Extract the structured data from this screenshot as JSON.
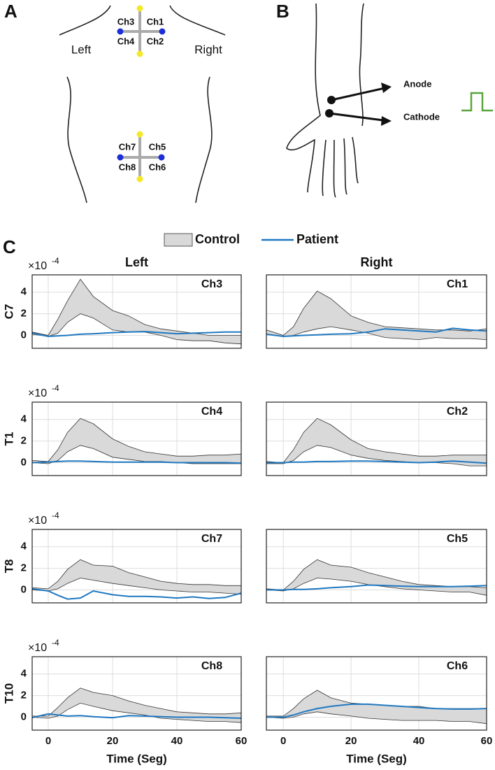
{
  "panel_labels": [
    "A",
    "B",
    "C"
  ],
  "diagram_a": {
    "left": "Left",
    "right": "Right",
    "electrodes": [
      "Ch3",
      "Ch1",
      "Ch4",
      "Ch2",
      "Ch7",
      "Ch5",
      "Ch8",
      "Ch6"
    ]
  },
  "diagram_b": {
    "anode": "Anode",
    "cathode": "Cathode"
  },
  "legend": [
    {
      "name": "Control",
      "color": "#d9d9d9"
    },
    {
      "name": "Patient",
      "color": "#1f78c1"
    }
  ],
  "chart_data": [
    {
      "type": "band-line",
      "title": "Left",
      "ylabel": "C7",
      "label": "Ch3",
      "y_multiplier": "×10",
      "y_exponent": "-4",
      "x": [
        -5,
        0,
        3,
        6,
        10,
        14,
        20,
        25,
        30,
        35,
        40,
        45,
        50,
        55,
        60
      ],
      "series": [
        {
          "upper": [
            0.3,
            0,
            1.5,
            3.2,
            5.2,
            3.6,
            2.3,
            1.8,
            1.0,
            0.6,
            0.4,
            0.2,
            0.0,
            0.0,
            0.0
          ],
          "lower": [
            0.1,
            -0.1,
            0.2,
            1.2,
            2.0,
            1.6,
            0.5,
            0.3,
            0.3,
            0.0,
            -0.4,
            -0.5,
            -0.5,
            -0.7,
            -0.8
          ]
        },
        {
          "values": [
            0.2,
            -0.1,
            -0.05,
            0.0,
            0.1,
            0.15,
            0.25,
            0.3,
            0.35,
            0.25,
            0.15,
            0.2,
            0.25,
            0.3,
            0.3
          ]
        }
      ],
      "xlim": [
        -5,
        60
      ],
      "ylim": [
        -1.2,
        5.6
      ],
      "xticks": [
        0,
        20,
        40,
        60
      ],
      "yticks": [
        0,
        2,
        4
      ],
      "grid": true
    },
    {
      "type": "band-line",
      "title": "Right",
      "label": "Ch1",
      "x": [
        -5,
        0,
        3,
        6,
        10,
        14,
        20,
        25,
        30,
        35,
        40,
        45,
        50,
        55,
        60
      ],
      "series": [
        {
          "upper": [
            0.5,
            0,
            0.8,
            2.5,
            4.1,
            3.4,
            1.8,
            1.2,
            0.8,
            0.7,
            0.6,
            0.5,
            0.5,
            0.4,
            0.6
          ],
          "lower": [
            0.1,
            -0.1,
            0,
            0.3,
            0.6,
            0.8,
            0.5,
            0.2,
            -0.2,
            -0.3,
            -0.4,
            -0.2,
            -0.3,
            -0.3,
            -0.4
          ]
        },
        {
          "values": [
            0.1,
            -0.1,
            -0.05,
            0,
            0.05,
            0.1,
            0.15,
            0.3,
            0.6,
            0.5,
            0.4,
            0.3,
            0.65,
            0.5,
            0.4
          ]
        }
      ],
      "xlim": [
        -5,
        60
      ],
      "ylim": [
        -1.2,
        5.6
      ],
      "xticks": [
        0,
        20,
        40,
        60
      ],
      "yticks": [
        0,
        2,
        4
      ],
      "grid": true
    },
    {
      "type": "band-line",
      "ylabel": "T1",
      "label": "Ch4",
      "y_multiplier": "×10",
      "y_exponent": "-4",
      "x": [
        -5,
        0,
        3,
        6,
        10,
        14,
        20,
        25,
        30,
        35,
        40,
        45,
        50,
        55,
        60
      ],
      "series": [
        {
          "upper": [
            0.2,
            0.1,
            1.2,
            2.8,
            4.1,
            3.6,
            2.2,
            1.5,
            1.0,
            0.8,
            0.6,
            0.6,
            0.7,
            0.7,
            0.8
          ],
          "lower": [
            0,
            -0.1,
            0.2,
            1.0,
            1.6,
            1.3,
            0.5,
            0.3,
            0.1,
            0.1,
            0,
            -0.1,
            -0.1,
            -0.1,
            -0.1
          ]
        },
        {
          "values": [
            0,
            0.05,
            0.1,
            0.15,
            0.15,
            0.1,
            0.05,
            0.05,
            0.05,
            0.05,
            0,
            0,
            0,
            0,
            -0.05
          ]
        }
      ],
      "xlim": [
        -5,
        60
      ],
      "ylim": [
        -1.2,
        5.6
      ],
      "xticks": [
        0,
        20,
        40,
        60
      ],
      "yticks": [
        0,
        2,
        4
      ],
      "grid": true
    },
    {
      "type": "band-line",
      "label": "Ch2",
      "x": [
        -5,
        0,
        3,
        6,
        10,
        14,
        20,
        25,
        30,
        35,
        40,
        45,
        50,
        55,
        60
      ],
      "series": [
        {
          "upper": [
            0.1,
            0,
            1.2,
            2.8,
            4.1,
            3.5,
            2.1,
            1.3,
            1.0,
            0.8,
            0.6,
            0.6,
            0.7,
            0.7,
            0.7
          ],
          "lower": [
            -0.1,
            -0.1,
            0.2,
            1.0,
            1.6,
            1.4,
            0.7,
            0.4,
            0.2,
            0.1,
            0,
            0,
            -0.1,
            -0.3,
            -0.3
          ]
        },
        {
          "values": [
            0,
            0,
            0.05,
            0.05,
            0.1,
            0.1,
            0.15,
            0.15,
            0.1,
            0.05,
            0,
            0.05,
            0.15,
            0.05,
            -0.05
          ]
        }
      ],
      "xlim": [
        -5,
        60
      ],
      "ylim": [
        -1.2,
        5.6
      ],
      "xticks": [
        0,
        20,
        40,
        60
      ],
      "yticks": [
        0,
        2,
        4
      ],
      "grid": true
    },
    {
      "type": "band-line",
      "ylabel": "T8",
      "label": "Ch7",
      "y_multiplier": "×10",
      "y_exponent": "-4",
      "x": [
        -5,
        0,
        3,
        6,
        10,
        14,
        20,
        25,
        30,
        35,
        40,
        45,
        50,
        55,
        60
      ],
      "series": [
        {
          "upper": [
            0.2,
            0.1,
            0.8,
            1.9,
            2.8,
            2.3,
            2.2,
            1.6,
            1.2,
            0.8,
            0.6,
            0.5,
            0.5,
            0.4,
            0.4
          ],
          "lower": [
            0,
            -0.1,
            0.1,
            0.6,
            1.1,
            0.9,
            0.6,
            0.4,
            0.2,
            0,
            -0.1,
            -0.2,
            -0.2,
            -0.3,
            -0.4
          ]
        },
        {
          "values": [
            0.1,
            -0.1,
            -0.5,
            -0.85,
            -0.75,
            -0.1,
            -0.45,
            -0.6,
            -0.6,
            -0.65,
            -0.75,
            -0.65,
            -0.8,
            -0.7,
            -0.3
          ]
        }
      ],
      "xlim": [
        -5,
        60
      ],
      "ylim": [
        -1.2,
        5.6
      ],
      "xticks": [
        0,
        20,
        40,
        60
      ],
      "yticks": [
        0,
        2,
        4
      ],
      "grid": true
    },
    {
      "type": "band-line",
      "label": "Ch5",
      "x": [
        -5,
        0,
        3,
        6,
        10,
        14,
        20,
        25,
        30,
        35,
        40,
        45,
        50,
        55,
        60
      ],
      "series": [
        {
          "upper": [
            0.1,
            0,
            0.8,
            1.9,
            2.8,
            2.3,
            2.1,
            1.6,
            1.2,
            0.8,
            0.5,
            0.4,
            0.3,
            0.3,
            0.2
          ],
          "lower": [
            0,
            -0.1,
            0.1,
            0.6,
            1.1,
            1.0,
            0.8,
            0.5,
            0.3,
            0.1,
            0,
            -0.1,
            -0.2,
            -0.2,
            -0.5
          ]
        },
        {
          "values": [
            0,
            0,
            0.05,
            0.05,
            0.1,
            0.2,
            0.3,
            0.45,
            0.4,
            0.35,
            0.3,
            0.3,
            0.3,
            0.35,
            0.4
          ]
        }
      ],
      "xlim": [
        -5,
        60
      ],
      "ylim": [
        -1.2,
        5.6
      ],
      "xticks": [
        0,
        20,
        40,
        60
      ],
      "yticks": [
        0,
        2,
        4
      ],
      "grid": true
    },
    {
      "type": "band-line",
      "ylabel": "T10",
      "label": "Ch8",
      "y_multiplier": "×10",
      "y_exponent": "-4",
      "xlabel": "Time (Seg)",
      "x": [
        -5,
        0,
        3,
        6,
        10,
        14,
        20,
        25,
        30,
        35,
        40,
        45,
        50,
        55,
        60
      ],
      "series": [
        {
          "upper": [
            0.1,
            0.1,
            0.9,
            1.8,
            2.7,
            2.3,
            2.0,
            1.5,
            1.1,
            0.8,
            0.5,
            0.4,
            0.3,
            0.3,
            0.4
          ],
          "lower": [
            0,
            -0.1,
            0.1,
            0.7,
            1.3,
            1.0,
            0.6,
            0.4,
            0.2,
            -0.1,
            -0.2,
            -0.3,
            -0.4,
            -0.4,
            -0.5
          ]
        },
        {
          "values": [
            -0.05,
            0.3,
            0.2,
            0.1,
            0.15,
            0.05,
            -0.05,
            0.15,
            0.1,
            0.05,
            0,
            0,
            0,
            -0.05,
            -0.1
          ]
        }
      ],
      "xlim": [
        -5,
        60
      ],
      "ylim": [
        -1.2,
        5.6
      ],
      "xticks": [
        0,
        20,
        40,
        60
      ],
      "yticks": [
        0,
        2,
        4
      ],
      "grid": true
    },
    {
      "type": "band-line",
      "label": "Ch6",
      "xlabel": "Time (Seg)",
      "x": [
        -5,
        0,
        3,
        6,
        10,
        14,
        20,
        25,
        30,
        35,
        40,
        45,
        50,
        55,
        60
      ],
      "series": [
        {
          "upper": [
            0.1,
            0.1,
            0.8,
            1.7,
            2.5,
            1.8,
            1.3,
            1.2,
            1.1,
            1.0,
            1.0,
            0.8,
            0.8,
            0.8,
            0.8
          ],
          "lower": [
            0,
            -0.1,
            0,
            0.3,
            0.5,
            0.3,
            0.1,
            -0.1,
            -0.2,
            -0.3,
            -0.3,
            -0.3,
            -0.4,
            -0.4,
            -0.6
          ]
        },
        {
          "values": [
            0,
            0,
            0.2,
            0.5,
            0.8,
            1.0,
            1.2,
            1.2,
            1.1,
            1.0,
            0.9,
            0.8,
            0.75,
            0.75,
            0.8
          ]
        }
      ],
      "xlim": [
        -5,
        60
      ],
      "ylim": [
        -1.2,
        5.6
      ],
      "xticks": [
        0,
        20,
        40,
        60
      ],
      "yticks": [
        0,
        2,
        4
      ],
      "grid": true
    }
  ]
}
